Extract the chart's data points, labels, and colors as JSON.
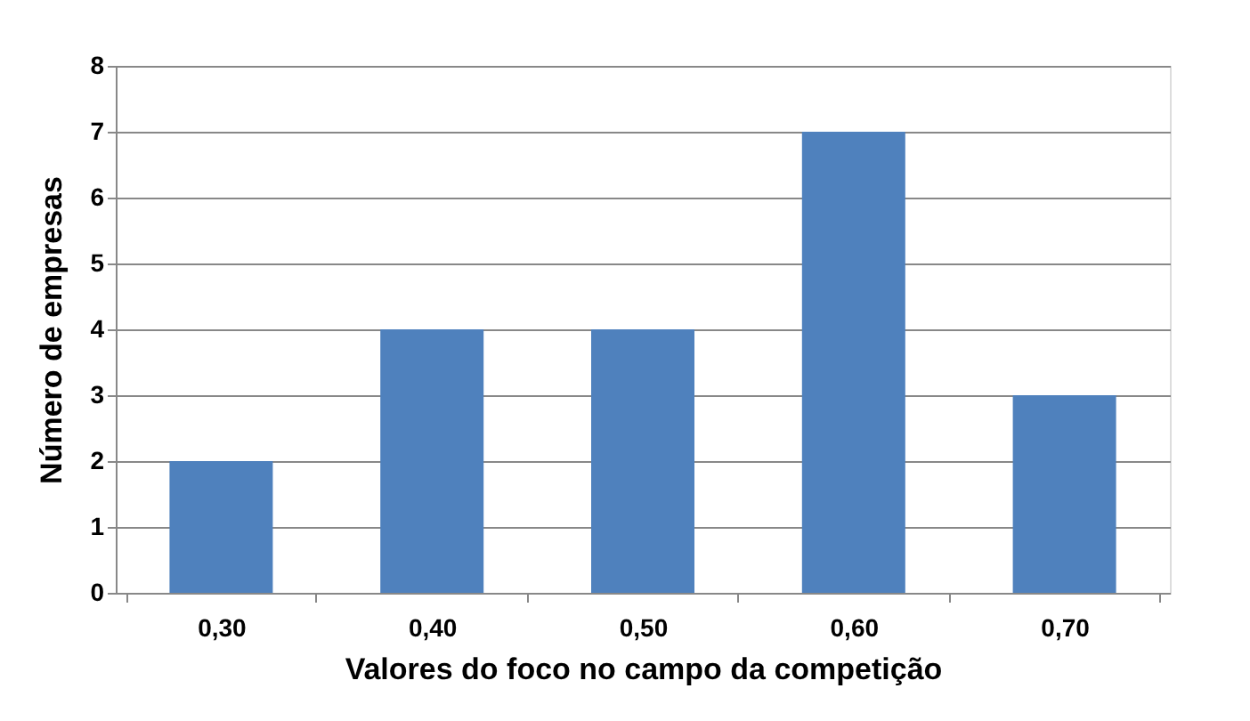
{
  "chart_data": {
    "type": "bar",
    "xlabel": "Valores do foco no campo da competição",
    "ylabel": "Número de empresas",
    "categories": [
      "0,30",
      "0,40",
      "0,50",
      "0,60",
      "0,70"
    ],
    "values": [
      2,
      4,
      4,
      7,
      3
    ],
    "color": "#4f81bd",
    "ylim": [
      0,
      8
    ],
    "yticks": [
      0,
      1,
      2,
      3,
      4,
      5,
      6,
      7,
      8
    ],
    "grid": "y"
  }
}
